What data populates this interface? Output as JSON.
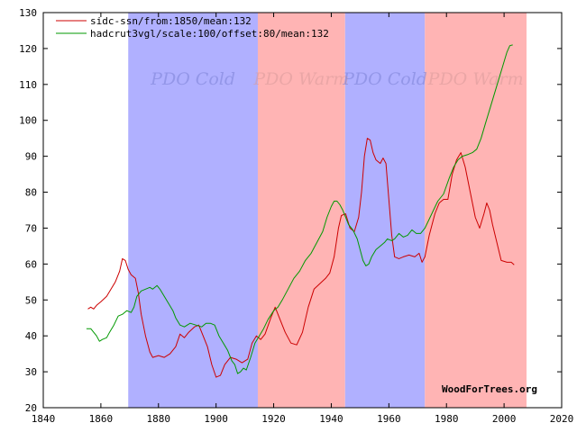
{
  "chart_data": {
    "type": "line",
    "xlim": [
      1840,
      2020
    ],
    "ylim": [
      20,
      130
    ],
    "x_ticks": [
      1840,
      1860,
      1880,
      1900,
      1920,
      1940,
      1960,
      1980,
      2000,
      2020
    ],
    "y_ticks": [
      20,
      30,
      40,
      50,
      60,
      70,
      80,
      90,
      100,
      110,
      120,
      130
    ],
    "regions": [
      {
        "label": "PDO Cold",
        "start": 1869.5,
        "end": 1914.5,
        "color": "#b0b0ff",
        "label_color": "#7b82d6"
      },
      {
        "label": "PDO Warm",
        "start": 1914.5,
        "end": 1944.8,
        "color": "#ffb4b4",
        "label_color": "#d99a9a"
      },
      {
        "label": "PDO Cold",
        "start": 1944.8,
        "end": 1972.5,
        "color": "#b0b0ff",
        "label_color": "#7b82d6"
      },
      {
        "label": "PDO Warm",
        "start": 1972.5,
        "end": 2007.8,
        "color": "#ffb4b4",
        "label_color": "#d99a9a"
      }
    ],
    "series": [
      {
        "name": "sidc-ssn/from:1850/mean:132",
        "color": "#cc0000",
        "points": [
          [
            1855.5,
            47.5
          ],
          [
            1856.5,
            48
          ],
          [
            1857.5,
            47.5
          ],
          [
            1858.5,
            48.5
          ],
          [
            1860,
            49.5
          ],
          [
            1862,
            51
          ],
          [
            1863.5,
            53
          ],
          [
            1865,
            55
          ],
          [
            1866.5,
            58
          ],
          [
            1867.5,
            61.5
          ],
          [
            1868.5,
            61
          ],
          [
            1869.5,
            58.5
          ],
          [
            1870.5,
            57
          ],
          [
            1872,
            56
          ],
          [
            1873,
            52
          ],
          [
            1874,
            46
          ],
          [
            1875.5,
            40
          ],
          [
            1877,
            35.5
          ],
          [
            1878,
            34
          ],
          [
            1880,
            34.5
          ],
          [
            1882,
            34
          ],
          [
            1884,
            35
          ],
          [
            1886,
            37
          ],
          [
            1887.5,
            40.5
          ],
          [
            1889,
            39.5
          ],
          [
            1890.5,
            41
          ],
          [
            1892.5,
            42.5
          ],
          [
            1894,
            43
          ],
          [
            1895.5,
            40
          ],
          [
            1897,
            37
          ],
          [
            1898.5,
            32
          ],
          [
            1900,
            28.5
          ],
          [
            1901.5,
            29
          ],
          [
            1903,
            32
          ],
          [
            1905,
            34
          ],
          [
            1907,
            33.5
          ],
          [
            1909,
            32.5
          ],
          [
            1911,
            33.5
          ],
          [
            1912.5,
            38
          ],
          [
            1914,
            40
          ],
          [
            1915.5,
            39
          ],
          [
            1917,
            40.5
          ],
          [
            1919,
            45
          ],
          [
            1920.5,
            48
          ],
          [
            1922.5,
            44
          ],
          [
            1924,
            41
          ],
          [
            1926,
            38
          ],
          [
            1928,
            37.5
          ],
          [
            1930,
            41
          ],
          [
            1932,
            48
          ],
          [
            1934,
            53
          ],
          [
            1936,
            54.5
          ],
          [
            1938,
            56
          ],
          [
            1939.5,
            57.5
          ],
          [
            1941,
            62
          ],
          [
            1942.5,
            70
          ],
          [
            1943.5,
            73.5
          ],
          [
            1945,
            74
          ],
          [
            1946.5,
            70
          ],
          [
            1948,
            69
          ],
          [
            1949.5,
            73
          ],
          [
            1950.5,
            80
          ],
          [
            1951.5,
            90
          ],
          [
            1952.5,
            95
          ],
          [
            1953.5,
            94.5
          ],
          [
            1954.5,
            91
          ],
          [
            1955.5,
            89
          ],
          [
            1957,
            88
          ],
          [
            1958,
            89.5
          ],
          [
            1959,
            88
          ],
          [
            1960,
            78
          ],
          [
            1961,
            68
          ],
          [
            1962,
            62
          ],
          [
            1963.5,
            61.5
          ],
          [
            1965,
            62
          ],
          [
            1967,
            62.5
          ],
          [
            1969,
            62
          ],
          [
            1970.5,
            63
          ],
          [
            1971.5,
            60.5
          ],
          [
            1972.5,
            62
          ],
          [
            1974,
            68
          ],
          [
            1976,
            74
          ],
          [
            1977.5,
            77
          ],
          [
            1979,
            78
          ],
          [
            1980.5,
            78
          ],
          [
            1982,
            85
          ],
          [
            1983.5,
            89
          ],
          [
            1985,
            91
          ],
          [
            1986.5,
            87
          ],
          [
            1988,
            81
          ],
          [
            1990,
            73
          ],
          [
            1991.5,
            70
          ],
          [
            1993,
            74
          ],
          [
            1994,
            77
          ],
          [
            1995,
            75
          ],
          [
            1996,
            71
          ],
          [
            1997.5,
            66
          ],
          [
            1999,
            61
          ],
          [
            2001,
            60.5
          ],
          [
            2002.5,
            60.5
          ],
          [
            2003.5,
            59.8
          ]
        ]
      },
      {
        "name": "hadcrut3vgl/scale:100/offset:80/mean:132",
        "color": "#009900",
        "points": [
          [
            1855,
            42
          ],
          [
            1856.5,
            42
          ],
          [
            1857.5,
            41
          ],
          [
            1858.5,
            40
          ],
          [
            1859.5,
            38.5
          ],
          [
            1860.5,
            39
          ],
          [
            1862,
            39.5
          ],
          [
            1863,
            41
          ],
          [
            1864.5,
            43
          ],
          [
            1866,
            45.5
          ],
          [
            1867.5,
            46
          ],
          [
            1869,
            47
          ],
          [
            1870.5,
            46.5
          ],
          [
            1871.5,
            48
          ],
          [
            1872.5,
            51
          ],
          [
            1874,
            52.5
          ],
          [
            1875.5,
            53
          ],
          [
            1877,
            53.5
          ],
          [
            1878,
            53
          ],
          [
            1879.5,
            54
          ],
          [
            1880.5,
            53
          ],
          [
            1882,
            51
          ],
          [
            1883.5,
            49
          ],
          [
            1885,
            47
          ],
          [
            1886,
            45
          ],
          [
            1887.5,
            43
          ],
          [
            1889,
            42.5
          ],
          [
            1891,
            43.5
          ],
          [
            1893,
            43
          ],
          [
            1895,
            42.5
          ],
          [
            1896.5,
            43.5
          ],
          [
            1898,
            43.5
          ],
          [
            1899.5,
            43
          ],
          [
            1901,
            40
          ],
          [
            1902.5,
            38
          ],
          [
            1904,
            36
          ],
          [
            1905.5,
            33
          ],
          [
            1906.5,
            32
          ],
          [
            1907.5,
            29.5
          ],
          [
            1908.5,
            30
          ],
          [
            1909.5,
            31
          ],
          [
            1910.5,
            30.5
          ],
          [
            1912,
            34
          ],
          [
            1913.5,
            38
          ],
          [
            1915,
            40
          ],
          [
            1916.5,
            42
          ],
          [
            1918,
            44.5
          ],
          [
            1920,
            47
          ],
          [
            1921.5,
            48
          ],
          [
            1923,
            50
          ],
          [
            1925,
            53
          ],
          [
            1927,
            56
          ],
          [
            1929,
            58
          ],
          [
            1931,
            61
          ],
          [
            1933,
            63
          ],
          [
            1935,
            66
          ],
          [
            1937,
            69
          ],
          [
            1938.5,
            73
          ],
          [
            1940,
            76
          ],
          [
            1941,
            77.5
          ],
          [
            1942,
            77.5
          ],
          [
            1943,
            76.5
          ],
          [
            1944,
            75
          ],
          [
            1945,
            73
          ],
          [
            1946,
            71
          ],
          [
            1947.5,
            69.5
          ],
          [
            1949,
            67
          ],
          [
            1950,
            64
          ],
          [
            1951,
            61
          ],
          [
            1952,
            59.5
          ],
          [
            1953,
            60
          ],
          [
            1954,
            62
          ],
          [
            1955.5,
            64
          ],
          [
            1957,
            65
          ],
          [
            1958.5,
            66
          ],
          [
            1959.5,
            67
          ],
          [
            1961,
            66.5
          ],
          [
            1962,
            67
          ],
          [
            1963.5,
            68.5
          ],
          [
            1965,
            67.5
          ],
          [
            1966.5,
            68
          ],
          [
            1968,
            69.5
          ],
          [
            1969.5,
            68.5
          ],
          [
            1971,
            68.5
          ],
          [
            1972.5,
            70
          ],
          [
            1974,
            72.5
          ],
          [
            1975.5,
            75
          ],
          [
            1977,
            77.5
          ],
          [
            1979,
            79.5
          ],
          [
            1981,
            84
          ],
          [
            1982.5,
            87
          ],
          [
            1984,
            89
          ],
          [
            1985.5,
            90
          ],
          [
            1987.5,
            90.5
          ],
          [
            1989,
            91
          ],
          [
            1990.5,
            92
          ],
          [
            1992,
            95
          ],
          [
            1993.5,
            99
          ],
          [
            1995,
            103
          ],
          [
            1996.5,
            107
          ],
          [
            1998,
            111
          ],
          [
            1999.5,
            115
          ],
          [
            2001,
            119
          ],
          [
            2002,
            120.8
          ],
          [
            2003,
            121
          ]
        ]
      }
    ],
    "annotations": [
      "WoodForTrees.org"
    ]
  }
}
